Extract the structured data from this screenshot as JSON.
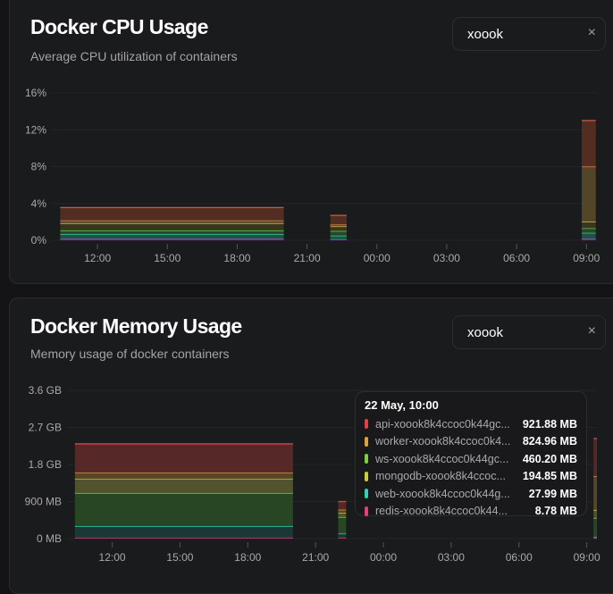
{
  "cpu": {
    "title": "Docker CPU Usage",
    "subtitle": "Average CPU utilization of containers",
    "search_value": "xoook",
    "clear_icon": "×"
  },
  "memory": {
    "title": "Docker Memory Usage",
    "subtitle": "Memory usage of docker containers",
    "search_value": "xoook",
    "clear_icon": "×",
    "tooltip": {
      "title": "22 May, 10:00",
      "rows": [
        {
          "name": "api-xoook8k4ccoc0k44gc...",
          "value": "921.88 MB",
          "color": "#d9434a"
        },
        {
          "name": "worker-xoook8k4ccoc0k4...",
          "value": "824.96 MB",
          "color": "#e0a040"
        },
        {
          "name": "ws-xoook8k4ccoc0k44gc...",
          "value": "460.20 MB",
          "color": "#7ccf3f"
        },
        {
          "name": "mongodb-xoook8k4ccoc...",
          "value": "194.85 MB",
          "color": "#c9cc3a"
        },
        {
          "name": "web-xoook8k4ccoc0k44g...",
          "value": "27.99 MB",
          "color": "#2fd3b5"
        },
        {
          "name": "redis-xoook8k4ccoc0k44...",
          "value": "8.78 MB",
          "color": "#e0407a"
        }
      ]
    }
  },
  "chart_data": [
    {
      "type": "area",
      "title": "Docker CPU Usage",
      "stacked": true,
      "ylim": [
        0,
        16
      ],
      "yticks": [
        "0%",
        "4%",
        "8%",
        "12%",
        "16%"
      ],
      "ytick_values": [
        0,
        4,
        8,
        12,
        16
      ],
      "xlim": [
        10.0,
        33.45
      ],
      "xticks": [
        "12:00",
        "15:00",
        "18:00",
        "21:00",
        "00:00",
        "03:00",
        "06:00",
        "09:00"
      ],
      "xtick_values": [
        12,
        15,
        18,
        21,
        24,
        27,
        30,
        33
      ],
      "series": [
        "redis",
        "web",
        "ws",
        "mongodb",
        "worker",
        "api"
      ],
      "colors": [
        "#b040d0",
        "#2fd3a0",
        "#5fd048",
        "#e0c050",
        "#e08a50",
        "#c06040"
      ],
      "fills": [
        "#7a2a90",
        "#1d5a48",
        "#2c4a2a",
        "#3c3a22",
        "#5a4a2a",
        "#5a3024"
      ],
      "segments": [
        {
          "start": 10.4,
          "end": 20.0,
          "values": [
            0.15,
            0.5,
            0.4,
            0.8,
            0.3,
            1.4
          ]
        },
        {
          "start": 22.0,
          "end": 22.7,
          "values": [
            0.1,
            0.4,
            0.5,
            0.5,
            0.2,
            1.0
          ]
        },
        {
          "start": 32.8,
          "end": 33.4,
          "values": [
            0.15,
            0.65,
            0.5,
            0.7,
            6.0,
            5.0
          ]
        }
      ]
    },
    {
      "type": "area",
      "title": "Docker Memory Usage",
      "stacked": true,
      "ylim": [
        0,
        3.6
      ],
      "yticks": [
        "0 MB",
        "900 MB",
        "1.8 GB",
        "2.7 GB",
        "3.6 GB"
      ],
      "ytick_values": [
        0,
        0.9,
        1.8,
        2.7,
        3.6
      ],
      "xlim": [
        10.0,
        33.45
      ],
      "xticks": [
        "12:00",
        "15:00",
        "18:00",
        "21:00",
        "00:00",
        "03:00",
        "06:00",
        "09:00"
      ],
      "xtick_values": [
        12,
        15,
        18,
        21,
        24,
        27,
        30,
        33
      ],
      "series": [
        "redis",
        "web",
        "ws",
        "mongodb",
        "worker",
        "api"
      ],
      "colors": [
        "#e0407a",
        "#2fd3b5",
        "#7ccf3f",
        "#c9cc3a",
        "#e0a040",
        "#d9434a"
      ],
      "fills": [
        "#3a1a3a",
        "#1c3c3a",
        "#2a4a26",
        "#575a2e",
        "#5e4a2a",
        "#5e2a2a"
      ],
      "segments": [
        {
          "start": 10.35,
          "end": 20.0,
          "values": [
            0.02,
            0.28,
            0.8,
            0.35,
            0.15,
            0.7
          ]
        },
        {
          "start": 22.0,
          "end": 22.35,
          "values": [
            0.02,
            0.1,
            0.4,
            0.1,
            0.08,
            0.2
          ]
        },
        {
          "start": 33.3,
          "end": 33.45,
          "values": [
            0.01,
            0.03,
            0.46,
            0.19,
            0.82,
            0.92
          ]
        }
      ]
    }
  ]
}
